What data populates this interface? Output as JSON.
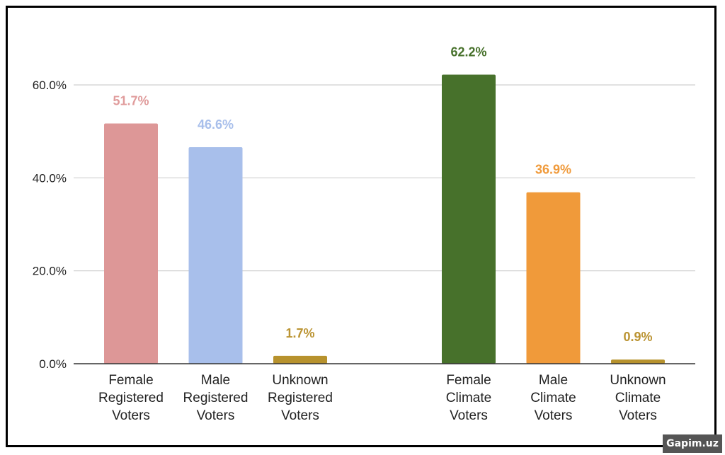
{
  "chart_data": {
    "type": "bar",
    "title": "",
    "xlabel": "",
    "ylabel": "",
    "ylim": [
      0,
      62.2
    ],
    "yticks": [
      "0.0%",
      "20.0%",
      "40.0%",
      "60.0%"
    ],
    "ytick_values": [
      0,
      20,
      40,
      60
    ],
    "grid": true,
    "legend": "none",
    "groups": [
      {
        "bars": [
          {
            "category": [
              "Female",
              "Registered",
              "Voters"
            ],
            "value": 51.7,
            "label": "51.7%",
            "color": "#dd9797",
            "label_color": "#e09c9c"
          },
          {
            "category": [
              "Male",
              "Registered",
              "Voters"
            ],
            "value": 46.6,
            "label": "46.6%",
            "color": "#a8bfeb",
            "label_color": "#a8bfeb"
          },
          {
            "category": [
              "Unknown",
              "Registered",
              "Voters"
            ],
            "value": 1.7,
            "label": "1.7%",
            "color": "#b7922d",
            "label_color": "#bb9433"
          }
        ]
      },
      {
        "bars": [
          {
            "category": [
              "Female",
              "Climate",
              "Voters"
            ],
            "value": 62.2,
            "label": "62.2%",
            "color": "#47712b",
            "label_color": "#47712b"
          },
          {
            "category": [
              "Male",
              "Climate",
              "Voters"
            ],
            "value": 36.9,
            "label": "36.9%",
            "color": "#f09a3a",
            "label_color": "#f09a3a"
          },
          {
            "category": [
              "Unknown",
              "Climate",
              "Voters"
            ],
            "value": 0.9,
            "label": "0.9%",
            "color": "#b7922d",
            "label_color": "#bb9433"
          }
        ]
      }
    ]
  },
  "watermark": "Gapim.uz"
}
